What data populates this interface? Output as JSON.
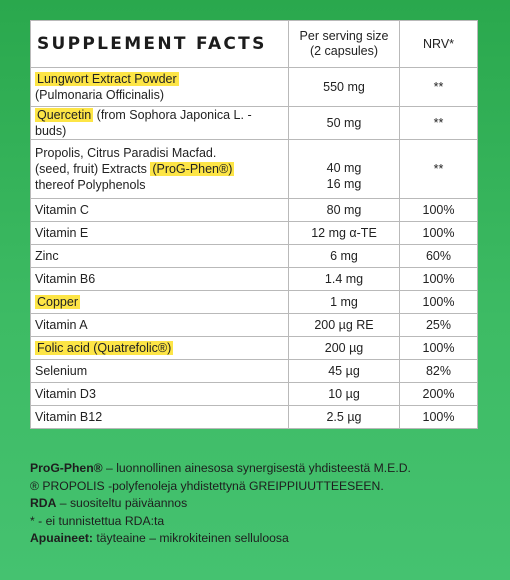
{
  "table": {
    "title": "SUPPLEMENT FACTS",
    "header_serving": [
      "Per serving size",
      "(2 capsules)"
    ],
    "header_nrv": "NRV*",
    "rows": [
      {
        "name_hl": "Lungwort Extract Powder",
        "name_rest": "(Pulmonaria Officinalis)",
        "amount": "550 mg",
        "nrv": "**"
      },
      {
        "name_hl": "Quercetin",
        "name_rest": " (from Sophora Japonica L. - buds)",
        "amount": "50 mg",
        "nrv": "**"
      },
      {
        "line1": "Propolis, Citrus Paradisi Macfad.",
        "line2_pre": "(seed, fruit) Extracts ",
        "line2_hl": "(ProG-Phen®)",
        "line3": "thereof Polyphenols",
        "amount1": "40 mg",
        "amount2": "16 mg",
        "nrv": "**"
      },
      {
        "name": "Vitamin C",
        "amount": "80 mg",
        "nrv": "100%"
      },
      {
        "name": "Vitamin E",
        "amount": "12 mg α-TE",
        "nrv": "100%"
      },
      {
        "name": "Zinc",
        "amount": "6 mg",
        "nrv": "60%"
      },
      {
        "name": "Vitamin B6",
        "amount": "1.4 mg",
        "nrv": "100%"
      },
      {
        "name_hl": "Copper",
        "amount": "1 mg",
        "nrv": "100%"
      },
      {
        "name": "Vitamin A",
        "amount": "200 µg RE",
        "nrv": "25%"
      },
      {
        "name_hl": "Folic acid (Quatrefolic®)",
        "amount": "200 µg",
        "nrv": "100%"
      },
      {
        "name": "Selenium",
        "amount": "45 µg",
        "nrv": "82%"
      },
      {
        "name": "Vitamin D3",
        "amount": "10 µg",
        "nrv": "200%"
      },
      {
        "name": "Vitamin B12",
        "amount": "2.5 µg",
        "nrv": "100%"
      }
    ]
  },
  "footer": {
    "line1_bold": "ProG-Phen®",
    "line1_rest": " – luonnollinen ainesosa synergisestä yhdisteestä M.E.D.",
    "line2": "® PROPOLIS -polyfenoleja yhdistettynä GREIPPIUUTTEESEEN.",
    "line3_bold": "RDA",
    "line3_rest": " – suositeltu päiväannos",
    "line4": "* - ei tunnistettua RDA:ta",
    "line5_bold": "Apuaineet:",
    "line5_rest": " täyteaine – mikrokiteinen selluloosa"
  }
}
